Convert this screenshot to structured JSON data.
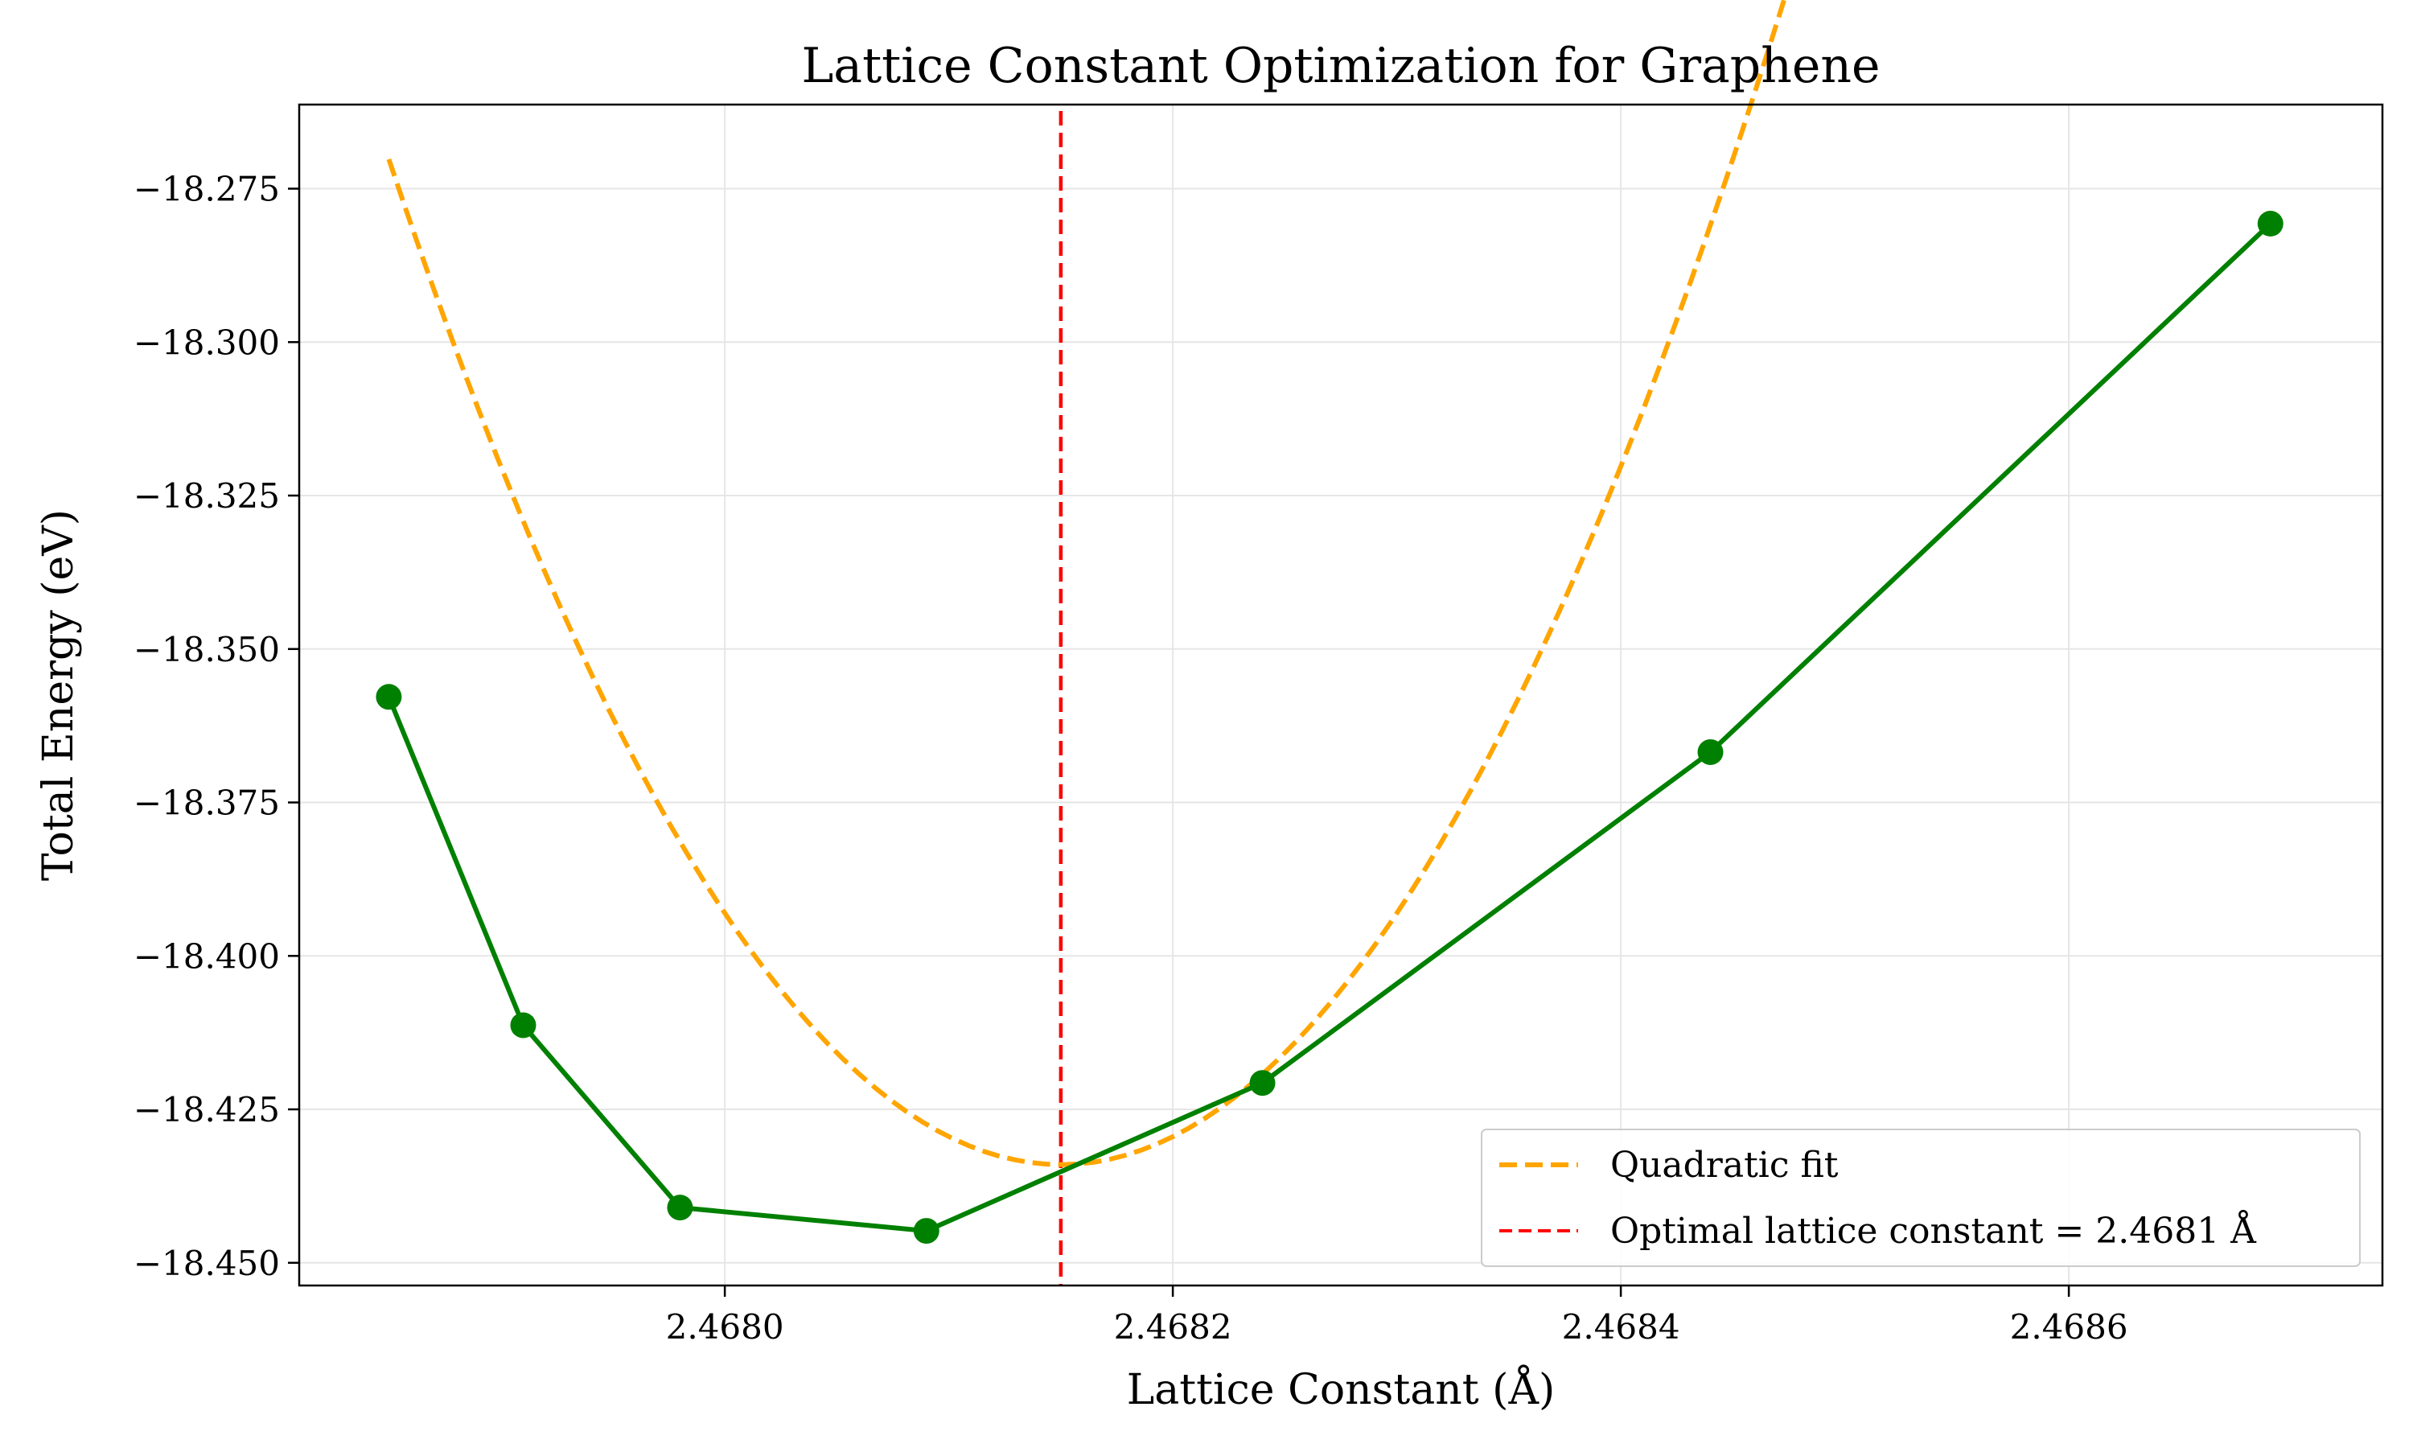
{
  "chart_data": {
    "type": "line",
    "title": "Lattice Constant Optimization for Graphene",
    "xlabel": "Lattice Constant (Å)",
    "ylabel": "Total Energy (eV)",
    "xlim": [
      2.46781,
      2.46874
    ],
    "ylim": [
      -18.4537,
      -18.2613
    ],
    "grid": true,
    "legend_position": "lower-right",
    "x_ticks": [
      2.468,
      2.4682,
      2.4684,
      2.4686
    ],
    "x_tick_labels": [
      "2.4680",
      "2.4682",
      "2.4684",
      "2.4686"
    ],
    "y_ticks": [
      -18.275,
      -18.3,
      -18.325,
      -18.35,
      -18.375,
      -18.4,
      -18.425,
      -18.45
    ],
    "y_tick_labels": [
      "−18.275",
      "−18.300",
      "−18.325",
      "−18.350",
      "−18.375",
      "−18.400",
      "−18.425",
      "−18.450"
    ],
    "series": [
      {
        "role": "data",
        "color": "#008000",
        "x": [
          2.46785,
          2.46791,
          2.46798,
          2.46809,
          2.46824,
          2.46844,
          2.46869
        ],
        "y": [
          -18.3578,
          -18.4113,
          -18.441,
          -18.4448,
          -18.4207,
          -18.3668,
          -18.2807
        ]
      },
      {
        "role": "fit",
        "name": "Quadratic fit",
        "color": "#FFA500",
        "style": "dashed",
        "x": [
          2.46785,
          2.46869
        ],
        "vertex_x": 2.46815,
        "vertex_y": -18.434,
        "curvature": 1820000
      },
      {
        "role": "reference",
        "name": "Optimal lattice constant = 2.4681 Å",
        "color": "#FF0000",
        "style": "dashed",
        "x_value": 2.46815
      }
    ]
  }
}
